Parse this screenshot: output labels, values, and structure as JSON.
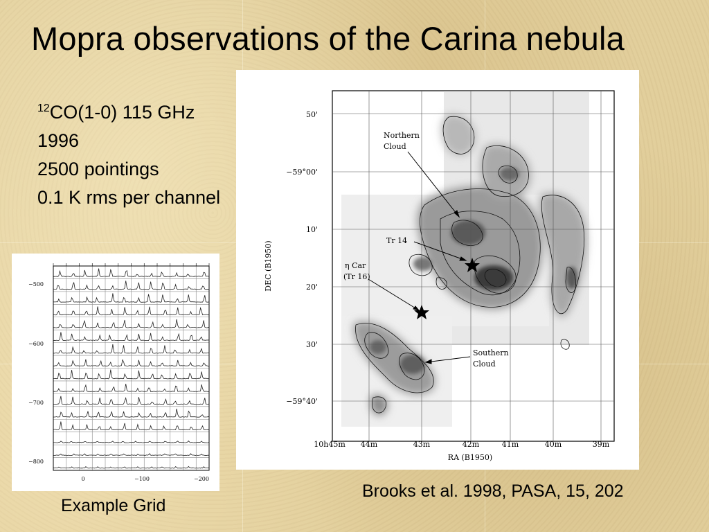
{
  "slide": {
    "title": "Mopra observations of the Carina nebula"
  },
  "info": {
    "isotope_mass": "12",
    "line": "CO(1-0) 115 GHz",
    "year": "1996",
    "pointings": "2500 pointings",
    "noise": "0.1 K rms per channel"
  },
  "map_figure": {
    "ylabel": "DEC (B1950)",
    "xlabel": "RA (B1950)",
    "y_ticks": [
      "50'",
      "−59°00'",
      "10'",
      "20'",
      "30'",
      "−59°40'"
    ],
    "x_ticks": [
      "10h45m",
      "44m",
      "43m",
      "42m",
      "41m",
      "40m",
      "39m"
    ],
    "labels": {
      "northern": [
        "Northern",
        "Cloud"
      ],
      "tr14": "Tr 14",
      "eta": [
        "η Car",
        "(Tr 16)"
      ],
      "southern": [
        "Southern",
        "Cloud"
      ]
    }
  },
  "grid_figure": {
    "y_ticks": [
      "−500",
      "−600",
      "−700",
      "−800"
    ],
    "x_ticks": [
      "0",
      "−100",
      "−200"
    ]
  },
  "captions": {
    "grid": "Example Grid",
    "reference": "Brooks et al. 1998, PASA, 15, 202"
  }
}
